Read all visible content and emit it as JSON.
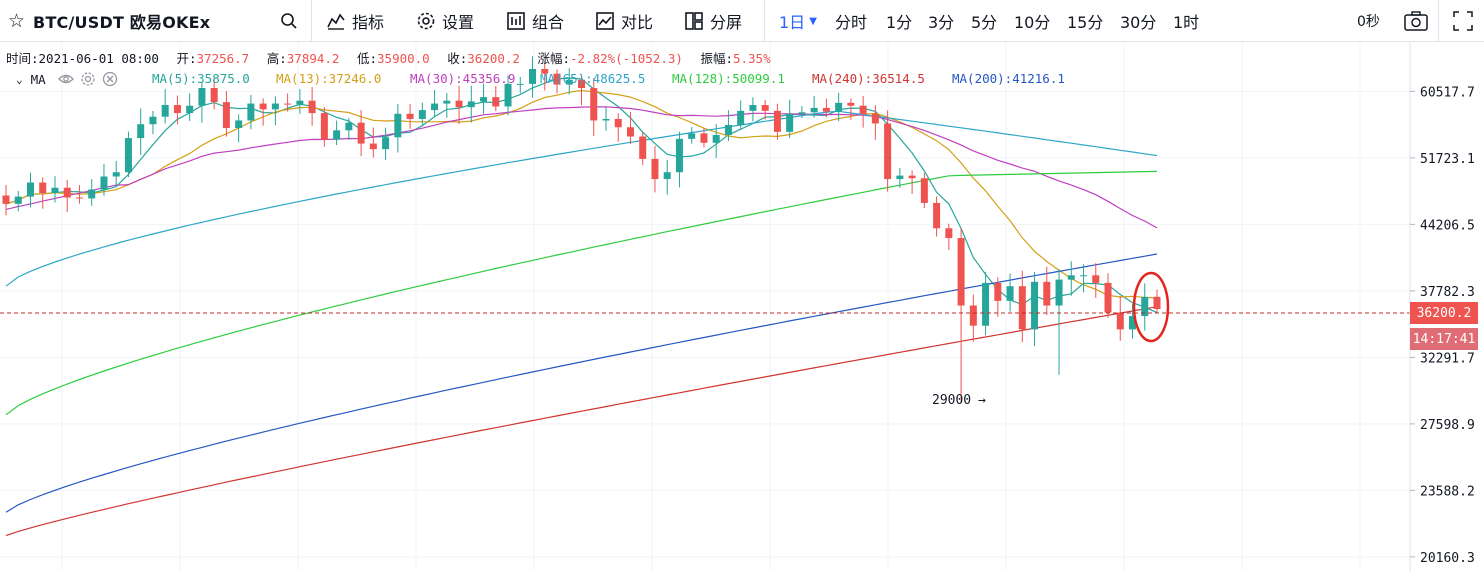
{
  "header": {
    "symbol": "BTC/USDT 欧易OKEx",
    "tools": [
      {
        "id": "indicators",
        "label": "指标"
      },
      {
        "id": "settings",
        "label": "设置"
      },
      {
        "id": "combine",
        "label": "组合"
      },
      {
        "id": "compare",
        "label": "对比"
      },
      {
        "id": "split",
        "label": "分屏"
      }
    ],
    "intervals": [
      "1日",
      "分时",
      "1分",
      "3分",
      "5分",
      "10分",
      "15分",
      "30分",
      "1时"
    ],
    "active_interval": "1日",
    "countdown_seconds": "0秒"
  },
  "ohlc": {
    "time_label": "时间:",
    "time": "2021-06-01 08:00",
    "open_label": "开:",
    "open": "37256.7",
    "high_label": "高:",
    "high": "37894.2",
    "low_label": "低:",
    "low": "35900.0",
    "close_label": "收:",
    "close": "36200.2",
    "change_label": "涨幅:",
    "change": "-2.82%(-1052.3)",
    "amplitude_label": "振幅:",
    "amplitude": "5.35%"
  },
  "ma_legend": {
    "label": "MA",
    "items": [
      {
        "text": "MA(5):35875.0",
        "color": "#26a69a"
      },
      {
        "text": "MA(13):37246.0",
        "color": "#d4a017"
      },
      {
        "text": "MA(30):45356.9",
        "color": "#c040c0"
      },
      {
        "text": "MA(65):48625.5",
        "color": "#2ea6c8"
      },
      {
        "text": "MA(128):50099.1",
        "color": "#2ecc40"
      },
      {
        "text": "MA(240):36514.5",
        "color": "#d0352f"
      },
      {
        "text": "MA(200):41216.1",
        "color": "#2458c4"
      }
    ]
  },
  "price_axis": {
    "ticks": [
      "60517.7",
      "51723.1",
      "44206.5",
      "37782.3",
      "32291.7",
      "27598.9",
      "23588.2",
      "20160.3"
    ]
  },
  "last_price": {
    "value": "36200.2",
    "countdown": "14:17:41"
  },
  "annotation": {
    "low_marker": "29000"
  },
  "colors": {
    "up": "#26a69a",
    "down": "#ef5350",
    "accent": "#2962ff",
    "last_price_tag": "#ef5350",
    "countdown_tag": "#e06c75",
    "highlight_circle": "#e5251d"
  },
  "chart_data": {
    "type": "candlestick",
    "interval": "1日",
    "yscale": "log",
    "ylim": [
      19500,
      68000
    ],
    "close_sample": [
      46400,
      47200,
      48800,
      47600,
      48200,
      47100,
      47000,
      48000,
      49500,
      50000,
      54200,
      56000,
      57000,
      58600,
      57500,
      58500,
      61000,
      59000,
      55500,
      56500,
      58800,
      58000,
      58800,
      58700,
      59200,
      57500,
      54000,
      55200,
      56200,
      53500,
      52800,
      54300,
      57400,
      56700,
      57900,
      58800,
      59200,
      58300,
      59100,
      59700,
      58400,
      61600,
      61600,
      63800,
      63100,
      61500,
      62200,
      61000,
      56500,
      56700,
      55600,
      54400,
      51600,
      49200,
      50000,
      54100,
      54800,
      53600,
      54600,
      55900,
      57800,
      58600,
      57800,
      55000,
      57400,
      57600,
      58200,
      57700,
      58900,
      58500,
      57400,
      56100,
      49200,
      49600,
      49300,
      46500,
      43800,
      42800,
      36500,
      34800,
      38500,
      36900,
      38200,
      34500,
      38600,
      36500,
      38800,
      39200,
      39200,
      38500,
      35900,
      34500,
      35600,
      37250,
      36200
    ],
    "ma_series": [
      "MA(5)",
      "MA(13)",
      "MA(30)",
      "MA(65)",
      "MA(128)",
      "MA(240)",
      "MA(200)"
    ]
  }
}
